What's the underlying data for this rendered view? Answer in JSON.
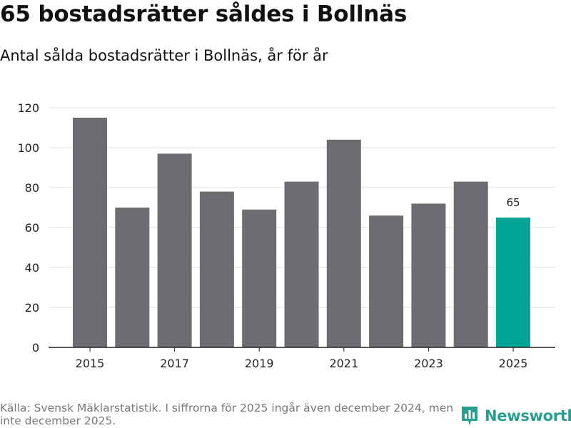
{
  "title": "65 bostadsrätter såldes i Bollnäs",
  "subtitle": "Antal sålda bostadsrätter i Bollnäs, år för år",
  "footer": "Källa: Svensk Mäklarstatistik. I siffrorna för 2025 ingår även december 2024, men inte december 2025.",
  "brand": "Newsworthy",
  "colors": {
    "bar": "#6d6c71",
    "highlight": "#00a496",
    "grid": "#dddddd",
    "axis": "#222222",
    "brand": "#2a9d8f"
  },
  "chart_data": {
    "type": "bar",
    "title": "65 bostadsrätter såldes i Bollnäs",
    "subtitle": "Antal sålda bostadsrätter i Bollnäs, år för år",
    "xlabel": "",
    "ylabel": "",
    "categories": [
      "2015",
      "2016",
      "2017",
      "2018",
      "2019",
      "2020",
      "2021",
      "2022",
      "2023",
      "2024",
      "2025"
    ],
    "values": [
      115,
      70,
      97,
      78,
      69,
      83,
      104,
      66,
      72,
      83,
      65
    ],
    "x_tick_labels": [
      "2015",
      "2017",
      "2019",
      "2021",
      "2023",
      "2025"
    ],
    "y_ticks": [
      0,
      20,
      40,
      60,
      80,
      100,
      120
    ],
    "ylim": [
      0,
      120
    ],
    "grid": true,
    "highlight_category": "2025",
    "data_labels": [
      {
        "category": "2025",
        "text": "65"
      }
    ]
  }
}
